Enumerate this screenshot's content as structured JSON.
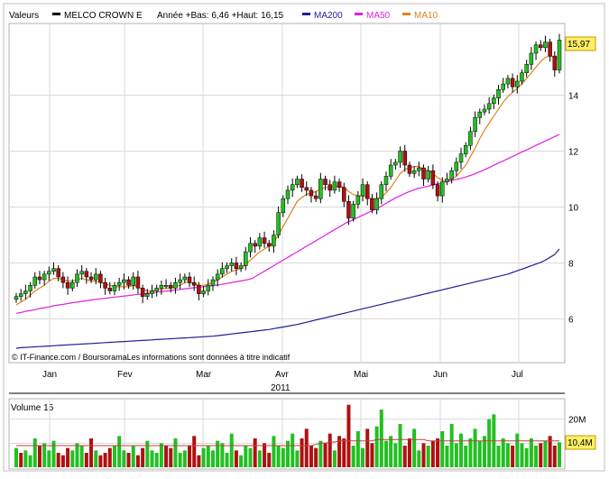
{
  "header": {
    "valeurs_label": "Valeurs",
    "main_series": {
      "name": "MELCO CROWN E",
      "color": "#000000"
    },
    "range_text": "Année +Bas: 6,46 +Haut: 16,15",
    "ma_legend": [
      {
        "name": "MA200",
        "color": "#1f1f9c"
      },
      {
        "name": "MA50",
        "color": "#e020e0"
      },
      {
        "name": "MA10",
        "color": "#e08020"
      }
    ]
  },
  "price_panel": {
    "last_price_label": "15,97",
    "credit_text": "© IT-Finance.com / BoursoramaLes informations sont données à titre indicatif",
    "year_label": "2011"
  },
  "volume_panel": {
    "title": "Volume 15",
    "last_volume_label": "10,4M"
  },
  "colors": {
    "up": "#22c022",
    "down": "#b01010",
    "grid": "#d8d8d8",
    "volume_ma": "#c04040"
  },
  "chart_data": {
    "type": "candlestick",
    "y_axis": {
      "ticks": [
        6,
        8,
        10,
        12,
        14
      ],
      "tick_labels": [
        "6",
        "8",
        "10",
        "12",
        "14"
      ],
      "range": [
        4.5,
        16.5
      ]
    },
    "x_axis": {
      "tick_labels": [
        "Jan",
        "Fev",
        "Mar",
        "Avr",
        "Mai",
        "Jun",
        "Jul"
      ],
      "year": "2011"
    },
    "closes": [
      6.8,
      6.9,
      7,
      7.2,
      7.5,
      7.4,
      7.6,
      7.7,
      7.8,
      7.5,
      7.3,
      7.1,
      7.3,
      7.6,
      7.7,
      7.5,
      7.4,
      7.6,
      7.3,
      7.1,
      7,
      7.2,
      7.3,
      7.4,
      7.2,
      7.5,
      7.1,
      6.8,
      6.9,
      7,
      7.1,
      7.2,
      7.2,
      7.1,
      7.3,
      7.4,
      7.5,
      7.3,
      7.2,
      6.9,
      7,
      7.2,
      7.4,
      7.6,
      7.8,
      7.9,
      8,
      7.8,
      7.9,
      8.4,
      8.7,
      8.6,
      8.9,
      8.7,
      8.6,
      9,
      9.8,
      10.3,
      10.6,
      10.8,
      11,
      10.7,
      10.6,
      10.4,
      10.3,
      11,
      10.8,
      10.6,
      10.9,
      10.7,
      10.2,
      9.6,
      10.1,
      10.4,
      10.8,
      10.3,
      9.9,
      10.3,
      10.8,
      11.1,
      11.5,
      11.6,
      12,
      11.5,
      11.2,
      11.3,
      11.4,
      11,
      11.3,
      10.8,
      10.4,
      10.9,
      11,
      11.3,
      11.6,
      11.9,
      12.2,
      12.7,
      13.2,
      13.4,
      13.5,
      13.7,
      13.9,
      14.2,
      14.4,
      14.6,
      14.3,
      14.5,
      14.8,
      15.1,
      15.5,
      15.8,
      15.7,
      15.9,
      15.4,
      14.9,
      15.97
    ],
    "series": [
      {
        "name": "MA10",
        "values": [
          6.5,
          6.6,
          6.7,
          6.85,
          7,
          7.1,
          7.2,
          7.35,
          7.45,
          7.45,
          7.4,
          7.35,
          7.35,
          7.4,
          7.45,
          7.4,
          7.35,
          7.35,
          7.3,
          7.25,
          7.2,
          7.15,
          7.15,
          7.15,
          7.15,
          7.2,
          7.15,
          7.05,
          7,
          7,
          7.05,
          7.05,
          7.1,
          7.1,
          7.15,
          7.2,
          7.3,
          7.3,
          7.25,
          7.2,
          7.2,
          7.25,
          7.3,
          7.4,
          7.5,
          7.6,
          7.7,
          7.75,
          7.8,
          7.95,
          8.1,
          8.25,
          8.4,
          8.5,
          8.6,
          8.75,
          9,
          9.3,
          9.6,
          9.9,
          10.2,
          10.35,
          10.45,
          10.5,
          10.55,
          10.65,
          10.7,
          10.7,
          10.75,
          10.75,
          10.7,
          10.55,
          10.45,
          10.4,
          10.4,
          10.35,
          10.3,
          10.3,
          10.35,
          10.5,
          10.7,
          10.95,
          11.2,
          11.35,
          11.4,
          11.45,
          11.45,
          11.35,
          11.3,
          11.2,
          11.05,
          10.95,
          10.95,
          11,
          11.1,
          11.3,
          11.5,
          11.8,
          12.1,
          12.45,
          12.75,
          13,
          13.25,
          13.5,
          13.75,
          13.95,
          14.1,
          14.25,
          14.4,
          14.6,
          14.8,
          15,
          15.2,
          15.35,
          15.4,
          15.35,
          15.3
        ]
      },
      {
        "name": "MA50",
        "values": [
          6.2,
          6.23,
          6.27,
          6.3,
          6.33,
          6.37,
          6.4,
          6.43,
          6.47,
          6.5,
          6.52,
          6.55,
          6.58,
          6.6,
          6.63,
          6.65,
          6.68,
          6.7,
          6.72,
          6.74,
          6.76,
          6.78,
          6.8,
          6.82,
          6.84,
          6.86,
          6.88,
          6.9,
          6.92,
          6.94,
          6.96,
          6.98,
          7,
          7.02,
          7.04,
          7.06,
          7.08,
          7.1,
          7.12,
          7.14,
          7.16,
          7.18,
          7.2,
          7.22,
          7.25,
          7.28,
          7.31,
          7.34,
          7.37,
          7.4,
          7.45,
          7.55,
          7.65,
          7.75,
          7.85,
          7.95,
          8.05,
          8.15,
          8.25,
          8.35,
          8.45,
          8.55,
          8.65,
          8.75,
          8.85,
          8.95,
          9.05,
          9.15,
          9.25,
          9.35,
          9.45,
          9.52,
          9.6,
          9.68,
          9.76,
          9.84,
          9.92,
          10,
          10.1,
          10.2,
          10.3,
          10.38,
          10.46,
          10.54,
          10.6,
          10.66,
          10.7,
          10.74,
          10.78,
          10.82,
          10.86,
          10.9,
          10.94,
          10.98,
          11.02,
          11.06,
          11.12,
          11.18,
          11.25,
          11.32,
          11.4,
          11.48,
          11.56,
          11.64,
          11.72,
          11.8,
          11.88,
          11.96,
          12.04,
          12.12,
          12.2,
          12.28,
          12.36,
          12.44,
          12.52,
          12.6
        ]
      },
      {
        "name": "MA200",
        "values": [
          4.95,
          4.97,
          4.98,
          4.99,
          5,
          5.01,
          5.02,
          5.03,
          5.04,
          5.05,
          5.06,
          5.07,
          5.08,
          5.09,
          5.1,
          5.11,
          5.12,
          5.13,
          5.14,
          5.15,
          5.16,
          5.17,
          5.18,
          5.19,
          5.2,
          5.21,
          5.22,
          5.23,
          5.24,
          5.25,
          5.26,
          5.27,
          5.28,
          5.29,
          5.3,
          5.31,
          5.32,
          5.33,
          5.34,
          5.35,
          5.36,
          5.37,
          5.38,
          5.4,
          5.42,
          5.44,
          5.46,
          5.48,
          5.5,
          5.52,
          5.54,
          5.56,
          5.58,
          5.6,
          5.62,
          5.65,
          5.68,
          5.71,
          5.74,
          5.77,
          5.8,
          5.84,
          5.88,
          5.92,
          5.96,
          6,
          6.04,
          6.08,
          6.12,
          6.16,
          6.2,
          6.24,
          6.28,
          6.32,
          6.36,
          6.4,
          6.44,
          6.48,
          6.52,
          6.56,
          6.6,
          6.64,
          6.68,
          6.72,
          6.76,
          6.8,
          6.84,
          6.88,
          6.92,
          6.96,
          7,
          7.04,
          7.08,
          7.12,
          7.16,
          7.2,
          7.24,
          7.28,
          7.32,
          7.36,
          7.4,
          7.44,
          7.48,
          7.52,
          7.56,
          7.6,
          7.66,
          7.72,
          7.78,
          7.84,
          7.9,
          7.96,
          8.02,
          8.1,
          8.2,
          8.3,
          8.5
        ]
      }
    ],
    "volume": {
      "unit": "M",
      "y_ticks": [
        10,
        20
      ],
      "y_tick_labels": [
        "",
        "20M"
      ],
      "range": [
        0,
        27
      ],
      "values": [
        8,
        6,
        7,
        5,
        12,
        9,
        10,
        7,
        11,
        6,
        5,
        8,
        7,
        10,
        9,
        6,
        12,
        7,
        5,
        6,
        8,
        9,
        13,
        7,
        6,
        9,
        5,
        8,
        11,
        7,
        6,
        10,
        9,
        8,
        12,
        6,
        7,
        9,
        13,
        5,
        8,
        9,
        7,
        11,
        10,
        6,
        14,
        7,
        5,
        9,
        8,
        12,
        7,
        10,
        6,
        13,
        9,
        8,
        11,
        14,
        7,
        12,
        16,
        9,
        8,
        11,
        10,
        14,
        7,
        13,
        12,
        26,
        9,
        15,
        8,
        16,
        10,
        17,
        24,
        11,
        13,
        10,
        18,
        9,
        12,
        16,
        7,
        10,
        9,
        11,
        12,
        15,
        9,
        18,
        10,
        14,
        9,
        12,
        16,
        11,
        13,
        20,
        22,
        9,
        12,
        10,
        9,
        14,
        10,
        8,
        12,
        9,
        10,
        11,
        13,
        9,
        10.4
      ],
      "up": [
        1,
        0,
        1,
        1,
        1,
        0,
        1,
        1,
        1,
        0,
        0,
        0,
        1,
        1,
        1,
        0,
        0,
        1,
        0,
        0,
        0,
        1,
        1,
        1,
        0,
        1,
        0,
        0,
        1,
        1,
        1,
        1,
        0,
        0,
        1,
        1,
        1,
        0,
        0,
        0,
        1,
        1,
        1,
        1,
        1,
        1,
        1,
        0,
        1,
        1,
        1,
        0,
        1,
        0,
        0,
        1,
        1,
        1,
        1,
        1,
        1,
        0,
        0,
        0,
        0,
        1,
        0,
        0,
        1,
        0,
        0,
        0,
        1,
        1,
        1,
        0,
        0,
        1,
        1,
        1,
        1,
        1,
        1,
        0,
        0,
        1,
        1,
        0,
        1,
        0,
        0,
        1,
        1,
        1,
        1,
        1,
        1,
        1,
        1,
        1,
        1,
        1,
        1,
        1,
        1,
        1,
        0,
        1,
        1,
        1,
        1,
        1,
        0,
        1,
        0,
        0,
        1
      ],
      "ma": [
        9,
        9,
        9,
        9,
        9,
        9,
        9,
        9,
        9,
        9,
        9,
        9,
        9,
        9,
        9,
        9,
        9,
        9,
        9,
        9,
        9,
        9,
        9,
        9,
        9,
        9,
        9,
        9,
        9,
        9,
        9,
        9,
        9,
        9,
        9,
        9,
        9,
        9,
        9,
        9,
        9,
        9,
        9,
        9,
        9,
        9,
        9,
        9,
        9,
        9,
        9,
        9,
        9,
        9,
        9,
        9,
        9,
        9,
        9,
        9,
        9,
        9,
        9,
        9,
        9.5,
        10,
        10,
        10.5,
        10.5,
        11,
        11,
        11,
        11,
        11,
        11,
        11,
        11,
        11.5,
        11.5,
        11.5,
        11.5,
        11.5,
        11.5,
        11.5,
        11.5,
        11.5,
        11.5,
        11.5,
        11,
        11,
        11,
        11,
        11,
        11,
        11,
        11,
        11,
        11,
        11,
        11,
        11,
        11,
        11,
        11,
        11,
        11,
        11,
        11,
        11,
        11,
        11,
        11,
        11,
        11,
        11,
        11,
        11
      ]
    }
  }
}
